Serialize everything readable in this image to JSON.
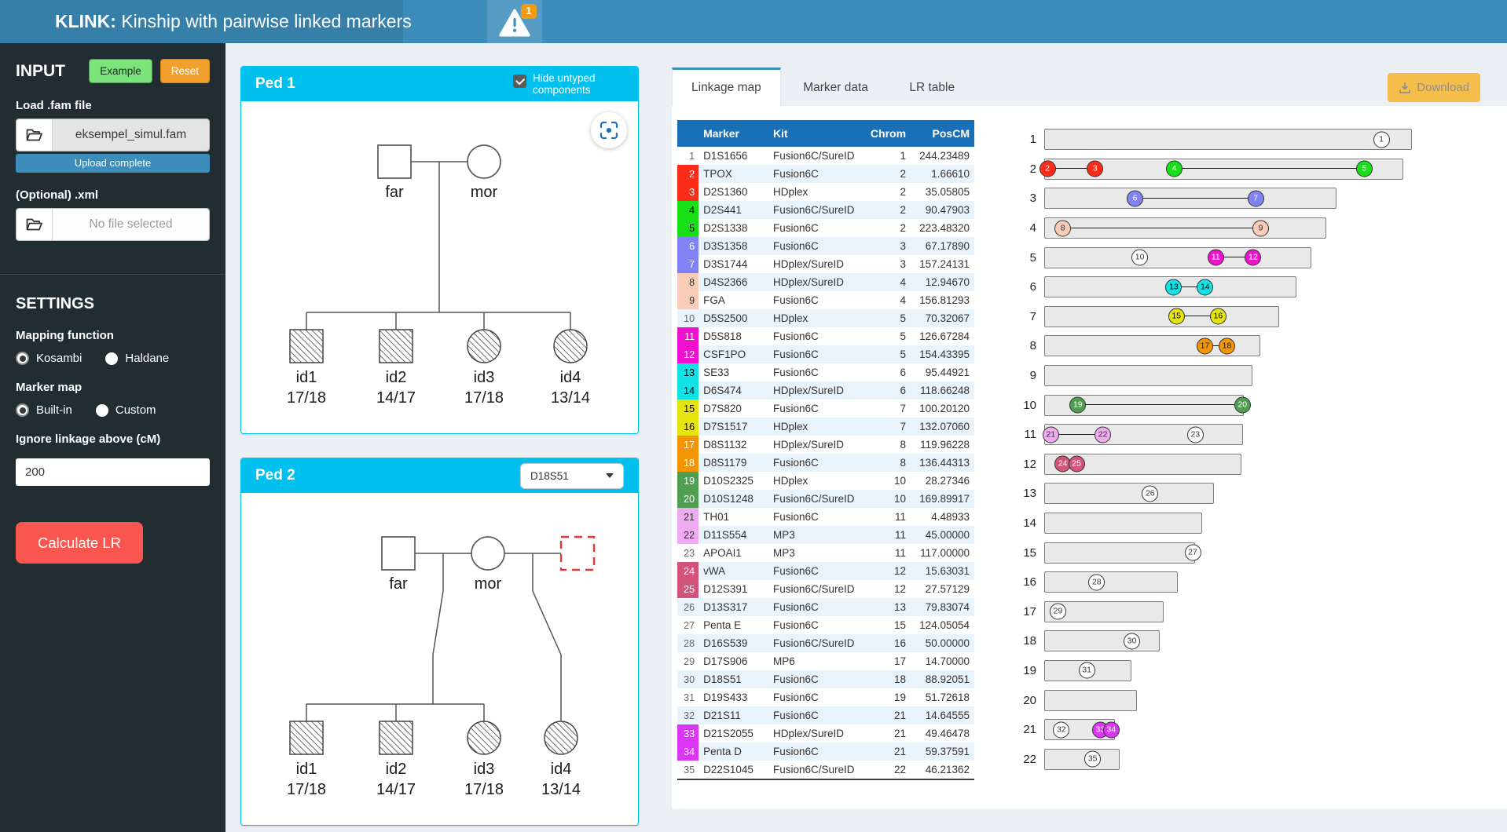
{
  "header": {
    "app_name": "KLINK:",
    "app_subtitle": " Kinship with pairwise linked markers",
    "warning_badge": "1"
  },
  "colors": {
    "navbar_bg": "#3c8dbc",
    "logo_bg": "#367fa9",
    "sidebar_bg": "#222d32",
    "page_bg": "#ecf0f5",
    "accent": "#00c0ef",
    "table_header_bg": "#1871b8",
    "calculate_bg": "#f9564f",
    "example_bg": "#7de37d",
    "reset_bg": "#f1a02c",
    "download_bg": "#f5bd4a",
    "progress_bg": "#3c8dbc",
    "badge_bg": "#f39c12"
  },
  "sidebar": {
    "input_heading": "INPUT",
    "example_button": "Example",
    "reset_button": "Reset",
    "fam_label": "Load .fam file",
    "fam_filename": "eksempel_simul.fam",
    "fam_progress": "Upload complete",
    "xml_label": "(Optional) .xml",
    "xml_placeholder": "No file selected",
    "settings_heading": "SETTINGS",
    "mapping_label": "Mapping function",
    "mapping_options": [
      {
        "label": "Kosambi",
        "selected": true
      },
      {
        "label": "Haldane",
        "selected": false
      }
    ],
    "marker_map_label": "Marker map",
    "marker_map_options": [
      {
        "label": "Built-in",
        "selected": true
      },
      {
        "label": "Custom",
        "selected": false
      }
    ],
    "linkage_label": "Ignore linkage above (cM)",
    "linkage_value": "200",
    "calculate_button": "Calculate LR"
  },
  "ped1": {
    "title": "Ped 1",
    "hide_untyped_label": "Hide untyped components",
    "checkbox_checked": true,
    "father": "far",
    "mother": "mor",
    "children": [
      {
        "id": "id1",
        "genotype": "17/18",
        "sex": "M"
      },
      {
        "id": "id2",
        "genotype": "14/17",
        "sex": "M"
      },
      {
        "id": "id3",
        "genotype": "17/18",
        "sex": "F"
      },
      {
        "id": "id4",
        "genotype": "13/14",
        "sex": "F"
      }
    ]
  },
  "ped2": {
    "title": "Ped 2",
    "marker_select": "D18S51",
    "father": "far",
    "mother": "mor",
    "children": [
      {
        "id": "id1",
        "genotype": "17/18",
        "sex": "M"
      },
      {
        "id": "id2",
        "genotype": "14/17",
        "sex": "M"
      },
      {
        "id": "id3",
        "genotype": "17/18",
        "sex": "F"
      },
      {
        "id": "id4",
        "genotype": "13/14",
        "sex": "F"
      }
    ]
  },
  "tabs": [
    {
      "label": "Linkage map",
      "active": true
    },
    {
      "label": "Marker data",
      "active": false
    },
    {
      "label": "LR table",
      "active": false
    }
  ],
  "download_button": "Download",
  "groups": {
    "none": {
      "bg": "",
      "tfg": "#666",
      "cfg": "#333"
    },
    "red": {
      "bg": "#fb2d1a",
      "tfg": "#fff",
      "cfg": "#fff"
    },
    "green1": {
      "bg": "#17e017",
      "tfg": "#000",
      "cfg": "#fff"
    },
    "blue": {
      "bg": "#8183f4",
      "tfg": "#fff",
      "cfg": "#fff"
    },
    "salmon": {
      "bg": "#f9ccb8",
      "tfg": "#333",
      "cfg": "#333"
    },
    "magenta": {
      "bg": "#ef11cd",
      "tfg": "#fff",
      "cfg": "#fff"
    },
    "cyan": {
      "bg": "#10e2e6",
      "tfg": "#000",
      "cfg": "#000"
    },
    "yellow": {
      "bg": "#e5e310",
      "tfg": "#000",
      "cfg": "#000"
    },
    "orange": {
      "bg": "#f49506",
      "tfg": "#fff",
      "cfg": "#222"
    },
    "green2": {
      "bg": "#4f9e51",
      "tfg": "#fff",
      "cfg": "#fff"
    },
    "plum": {
      "bg": "#eeabf1",
      "tfg": "#333",
      "cfg": "#333"
    },
    "pink": {
      "bg": "#d2547b",
      "tfg": "#fff",
      "cfg": "#fff"
    },
    "violet": {
      "bg": "#da36f3",
      "tfg": "#fff",
      "cfg": "#fff"
    }
  },
  "marker_table": {
    "columns": [
      "Marker",
      "Kit",
      "Chrom",
      "PosCM"
    ],
    "rows": [
      [
        1,
        "D1S1656",
        "Fusion6C/SureID",
        "1",
        "244.23489",
        "none"
      ],
      [
        2,
        "TPOX",
        "Fusion6C",
        "2",
        "1.66610",
        "red"
      ],
      [
        3,
        "D2S1360",
        "HDplex",
        "2",
        "35.05805",
        "red"
      ],
      [
        4,
        "D2S441",
        "Fusion6C/SureID",
        "2",
        "90.47903",
        "green1"
      ],
      [
        5,
        "D2S1338",
        "Fusion6C",
        "2",
        "223.48320",
        "green1"
      ],
      [
        6,
        "D3S1358",
        "Fusion6C",
        "3",
        "67.17890",
        "blue"
      ],
      [
        7,
        "D3S1744",
        "HDplex/SureID",
        "3",
        "157.24131",
        "blue"
      ],
      [
        8,
        "D4S2366",
        "HDplex/SureID",
        "4",
        "12.94670",
        "salmon"
      ],
      [
        9,
        "FGA",
        "Fusion6C",
        "4",
        "156.81293",
        "salmon"
      ],
      [
        10,
        "D5S2500",
        "HDplex",
        "5",
        "70.32067",
        "none"
      ],
      [
        11,
        "D5S818",
        "Fusion6C",
        "5",
        "126.67284",
        "magenta"
      ],
      [
        12,
        "CSF1PO",
        "Fusion6C",
        "5",
        "154.43395",
        "magenta"
      ],
      [
        13,
        "SE33",
        "Fusion6C",
        "6",
        "95.44921",
        "cyan"
      ],
      [
        14,
        "D6S474",
        "HDplex/SureID",
        "6",
        "118.66248",
        "cyan"
      ],
      [
        15,
        "D7S820",
        "Fusion6C",
        "7",
        "100.20120",
        "yellow"
      ],
      [
        16,
        "D7S1517",
        "HDplex",
        "7",
        "132.07060",
        "yellow"
      ],
      [
        17,
        "D8S1132",
        "HDplex/SureID",
        "8",
        "119.96228",
        "orange"
      ],
      [
        18,
        "D8S1179",
        "Fusion6C",
        "8",
        "136.44313",
        "orange"
      ],
      [
        19,
        "D10S2325",
        "HDplex",
        "10",
        "28.27346",
        "green2"
      ],
      [
        20,
        "D10S1248",
        "Fusion6C/SureID",
        "10",
        "169.89917",
        "green2"
      ],
      [
        21,
        "TH01",
        "Fusion6C",
        "11",
        "4.48933",
        "plum"
      ],
      [
        22,
        "D11S554",
        "MP3",
        "11",
        "45.00000",
        "plum"
      ],
      [
        23,
        "APOAI1",
        "MP3",
        "11",
        "117.00000",
        "none"
      ],
      [
        24,
        "vWA",
        "Fusion6C",
        "12",
        "15.63031",
        "pink"
      ],
      [
        25,
        "D12S391",
        "Fusion6C/SureID",
        "12",
        "27.57129",
        "pink"
      ],
      [
        26,
        "D13S317",
        "Fusion6C",
        "13",
        "79.83074",
        "none"
      ],
      [
        27,
        "Penta E",
        "Fusion6C",
        "15",
        "124.05054",
        "none"
      ],
      [
        28,
        "D16S539",
        "Fusion6C/SureID",
        "16",
        "50.00000",
        "none"
      ],
      [
        29,
        "D17S906",
        "MP6",
        "17",
        "14.70000",
        "none"
      ],
      [
        30,
        "D18S51",
        "Fusion6C",
        "18",
        "88.92051",
        "none"
      ],
      [
        31,
        "D19S433",
        "Fusion6C",
        "19",
        "51.72618",
        "none"
      ],
      [
        32,
        "D21S11",
        "Fusion6C",
        "21",
        "14.64555",
        "none"
      ],
      [
        33,
        "D21S2055",
        "HDplex/SureID",
        "21",
        "49.46478",
        "violet"
      ],
      [
        34,
        "Penta D",
        "Fusion6C",
        "21",
        "59.37591",
        "violet"
      ],
      [
        35,
        "D22S1045",
        "Fusion6C/SureID",
        "22",
        "46.21362",
        "none"
      ]
    ]
  },
  "chart_data": {
    "type": "chromosome-ideogram",
    "title": "Linkage map",
    "description": "22 autosome bars (width proportional to physical size in Mb); numbered marker circles placed at genetic position cM / chromosome cM length; linked marker pairs share a color and are joined by a line.",
    "linked_pairs": [
      [
        2,
        3
      ],
      [
        4,
        5
      ],
      [
        6,
        7
      ],
      [
        8,
        9
      ],
      [
        11,
        12
      ],
      [
        13,
        14
      ],
      [
        15,
        16
      ],
      [
        17,
        18
      ],
      [
        19,
        20
      ],
      [
        21,
        22
      ],
      [
        24,
        25
      ],
      [
        33,
        34
      ]
    ],
    "chromosomes": [
      {
        "chrom": 1,
        "size_mb": 249.3,
        "length_cM": 267,
        "markers": [
          [
            1,
            244.23489,
            "none"
          ]
        ]
      },
      {
        "chrom": 2,
        "size_mb": 243.2,
        "length_cM": 251,
        "markers": [
          [
            2,
            1.6661,
            "red"
          ],
          [
            3,
            35.05805,
            "red"
          ],
          [
            4,
            90.47903,
            "green1"
          ],
          [
            5,
            223.4832,
            "green1"
          ]
        ]
      },
      {
        "chrom": 3,
        "size_mb": 198.0,
        "length_cM": 218,
        "markers": [
          [
            6,
            67.1789,
            "blue"
          ],
          [
            7,
            157.24131,
            "blue"
          ]
        ]
      },
      {
        "chrom": 4,
        "size_mb": 191.2,
        "length_cM": 205,
        "markers": [
          [
            8,
            12.9467,
            "salmon"
          ],
          [
            9,
            156.81293,
            "salmon"
          ]
        ]
      },
      {
        "chrom": 5,
        "size_mb": 180.9,
        "length_cM": 198,
        "markers": [
          [
            10,
            70.32067,
            "none"
          ],
          [
            11,
            126.67284,
            "magenta"
          ],
          [
            12,
            154.43395,
            "magenta"
          ]
        ]
      },
      {
        "chrom": 6,
        "size_mb": 171.1,
        "length_cM": 187,
        "markers": [
          [
            13,
            95.44921,
            "cyan"
          ],
          [
            14,
            118.66248,
            "cyan"
          ]
        ]
      },
      {
        "chrom": 7,
        "size_mb": 159.1,
        "length_cM": 179,
        "markers": [
          [
            15,
            100.2012,
            "yellow"
          ],
          [
            16,
            132.0706,
            "yellow"
          ]
        ]
      },
      {
        "chrom": 8,
        "size_mb": 146.4,
        "length_cM": 162,
        "markers": [
          [
            17,
            119.96228,
            "orange"
          ],
          [
            18,
            136.44313,
            "orange"
          ]
        ]
      },
      {
        "chrom": 9,
        "size_mb": 141.2,
        "length_cM": 157,
        "markers": []
      },
      {
        "chrom": 10,
        "size_mb": 135.5,
        "length_cM": 172,
        "markers": [
          [
            19,
            28.27346,
            "green2"
          ],
          [
            20,
            169.89917,
            "green2"
          ]
        ]
      },
      {
        "chrom": 11,
        "size_mb": 135.0,
        "length_cM": 155,
        "markers": [
          [
            21,
            4.48933,
            "plum"
          ],
          [
            22,
            45.0,
            "plum"
          ],
          [
            23,
            117.0,
            "none"
          ]
        ]
      },
      {
        "chrom": 12,
        "size_mb": 133.9,
        "length_cM": 173,
        "markers": [
          [
            24,
            15.63031,
            "pink"
          ],
          [
            25,
            27.57129,
            "pink"
          ]
        ]
      },
      {
        "chrom": 13,
        "size_mb": 115.2,
        "length_cM": 129,
        "markers": [
          [
            26,
            79.83074,
            "none"
          ]
        ]
      },
      {
        "chrom": 14,
        "size_mb": 107.3,
        "length_cM": 117,
        "markers": []
      },
      {
        "chrom": 15,
        "size_mb": 102.5,
        "length_cM": 127,
        "markers": [
          [
            27,
            124.05054,
            "none"
          ]
        ]
      },
      {
        "chrom": 16,
        "size_mb": 90.4,
        "length_cM": 129,
        "markers": [
          [
            28,
            50.0,
            "none"
          ]
        ]
      },
      {
        "chrom": 17,
        "size_mb": 81.2,
        "length_cM": 137,
        "markers": [
          [
            29,
            14.7,
            "none"
          ]
        ]
      },
      {
        "chrom": 18,
        "size_mb": 78.1,
        "length_cM": 118,
        "markers": [
          [
            30,
            88.92051,
            "none"
          ]
        ]
      },
      {
        "chrom": 19,
        "size_mb": 59.1,
        "length_cM": 108,
        "markers": [
          [
            31,
            51.72618,
            "none"
          ]
        ]
      },
      {
        "chrom": 20,
        "size_mb": 63.0,
        "length_cM": 108,
        "markers": []
      },
      {
        "chrom": 21,
        "size_mb": 48.1,
        "length_cM": 63.5,
        "markers": [
          [
            32,
            14.64555,
            "none"
          ],
          [
            33,
            49.46478,
            "violet"
          ],
          [
            34,
            59.37591,
            "violet"
          ]
        ]
      },
      {
        "chrom": 22,
        "size_mb": 51.3,
        "length_cM": 73.5,
        "markers": [
          [
            35,
            46.21362,
            "none"
          ]
        ]
      }
    ]
  }
}
